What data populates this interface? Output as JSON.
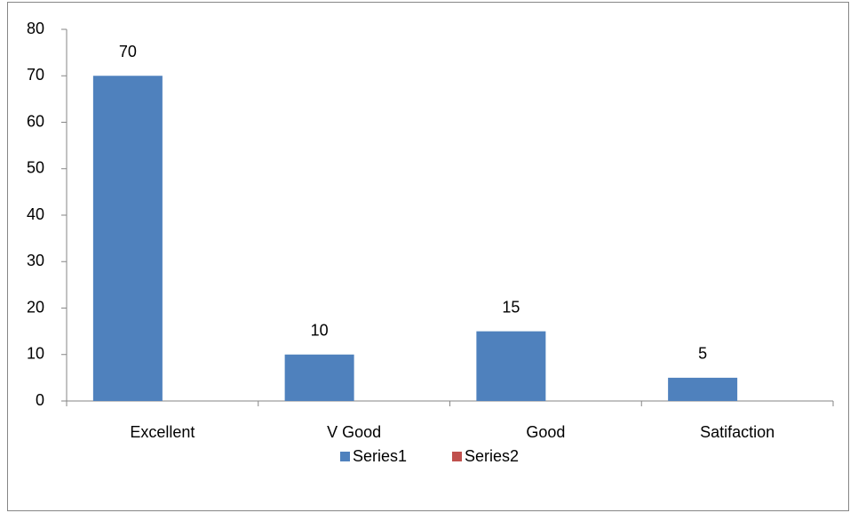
{
  "chart_data": {
    "type": "bar",
    "categories": [
      "Excellent",
      "V Good",
      "Good",
      "Satifaction"
    ],
    "series": [
      {
        "name": "Series1",
        "color": "#4f81bd",
        "values": [
          70,
          10,
          15,
          5
        ]
      },
      {
        "name": "Series2",
        "color": "#c0504d",
        "values": [
          null,
          null,
          null,
          null
        ]
      }
    ],
    "ylim": [
      0,
      80
    ],
    "yticks": [
      0,
      10,
      20,
      30,
      40,
      50,
      60,
      70,
      80
    ],
    "grid": false,
    "legend": "bottom",
    "data_labels": true
  }
}
